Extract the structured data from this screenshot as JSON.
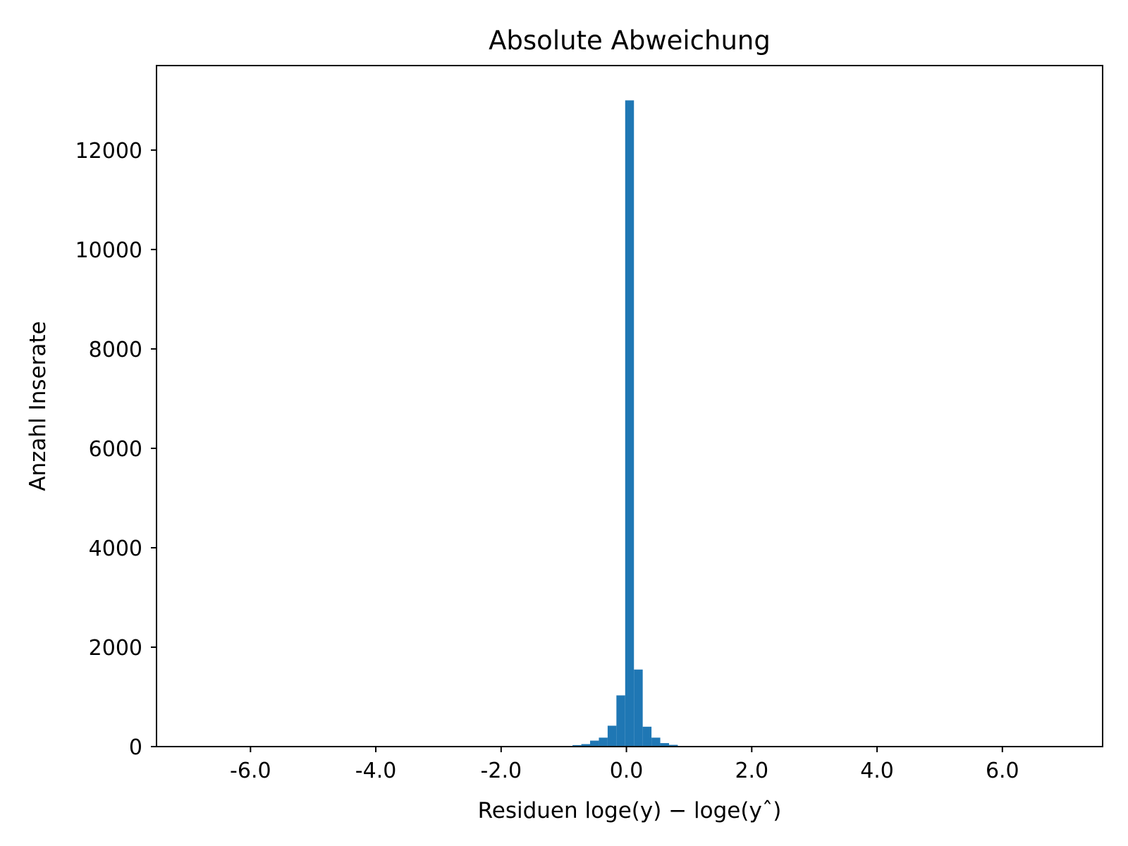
{
  "chart_data": {
    "type": "bar",
    "title": "Absolute Abweichung",
    "xlabel": "Residuen loge(y) − loge(yˆ)",
    "ylabel": "Anzahl Inserate",
    "xlim": [
      -7.5,
      7.6
    ],
    "ylim": [
      0,
      13700
    ],
    "x_ticks": [
      -6.0,
      -4.0,
      -2.0,
      0.0,
      2.0,
      4.0,
      6.0
    ],
    "x_tick_labels": [
      "-6.0",
      "-4.0",
      "-2.0",
      "0.0",
      "2.0",
      "4.0",
      "6.0"
    ],
    "y_ticks": [
      0,
      2000,
      4000,
      6000,
      8000,
      10000,
      12000
    ],
    "y_tick_labels": [
      "0",
      "2000",
      "4000",
      "6000",
      "8000",
      "10000",
      "12000"
    ],
    "grid": false,
    "bar_color": "#1f77b4",
    "bins": [
      {
        "x0": -1.0,
        "x1": -0.86,
        "count": 10
      },
      {
        "x0": -0.86,
        "x1": -0.72,
        "count": 30
      },
      {
        "x0": -0.72,
        "x1": -0.58,
        "count": 50
      },
      {
        "x0": -0.58,
        "x1": -0.44,
        "count": 120
      },
      {
        "x0": -0.44,
        "x1": -0.3,
        "count": 180
      },
      {
        "x0": -0.3,
        "x1": -0.16,
        "count": 420
      },
      {
        "x0": -0.16,
        "x1": -0.02,
        "count": 1030
      },
      {
        "x0": -0.02,
        "x1": 0.12,
        "count": 13000
      },
      {
        "x0": 0.12,
        "x1": 0.26,
        "count": 1550
      },
      {
        "x0": 0.26,
        "x1": 0.4,
        "count": 400
      },
      {
        "x0": 0.4,
        "x1": 0.54,
        "count": 180
      },
      {
        "x0": 0.54,
        "x1": 0.68,
        "count": 70
      },
      {
        "x0": 0.68,
        "x1": 0.82,
        "count": 35
      },
      {
        "x0": 0.82,
        "x1": 0.96,
        "count": 10
      }
    ]
  }
}
